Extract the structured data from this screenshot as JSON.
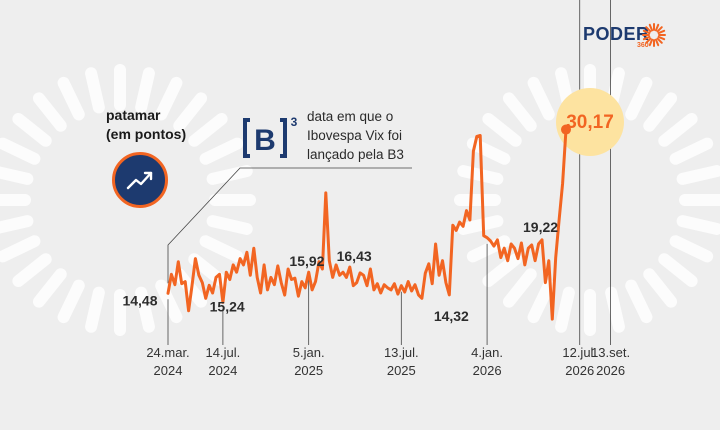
{
  "brand": {
    "name": "PODER",
    "sub": "360",
    "colors": {
      "navy": "#1d3a6f",
      "orange": "#f26522",
      "highlight": "#fde3a0",
      "background": "#eeeeee"
    }
  },
  "legend": {
    "title_line1": "patamar",
    "title_line2": "(em pontos)",
    "icon": "trend-up-icon"
  },
  "b3_note": {
    "logo_text": "B",
    "logo_superscript": "3",
    "line1": "data em que o",
    "line2": "Ibovespa Vix foi",
    "line3": "lançado pela B3"
  },
  "chart_data": {
    "type": "line",
    "title": "",
    "xlabel": "",
    "ylabel": "",
    "ylim": [
      10,
      33
    ],
    "grid": false,
    "x_ticks": [
      {
        "line1": "24.mar.",
        "line2": "2024",
        "week": 0
      },
      {
        "line1": "14.jul.",
        "line2": "2024",
        "week": 16
      },
      {
        "line1": "5.jan.",
        "line2": "2025",
        "week": 41
      },
      {
        "line1": "13.jul.",
        "line2": "2025",
        "week": 68
      },
      {
        "line1": "4.jan.",
        "line2": "2026",
        "week": 93
      },
      {
        "line1": "12.jul.",
        "line2": "2026",
        "week": 120
      },
      {
        "line1": "13.set.",
        "line2": "2026",
        "week": 129
      }
    ],
    "series": [
      {
        "values": [
          14.48,
          16.3,
          15.3,
          17.5,
          15.4,
          15.6,
          12.8,
          15.2,
          17.8,
          16.2,
          15.5,
          14.0,
          15.24,
          14.5,
          16.0,
          16.3,
          13.6,
          16.5,
          15.8,
          17.2,
          16.5,
          17.8,
          17.2,
          18.4,
          16.2,
          18.8,
          16.0,
          14.5,
          17.2,
          14.8,
          16.0,
          15.3,
          17.1,
          15.5,
          14.3,
          16.8,
          15.8,
          15.92,
          14.2,
          15.6,
          15.0,
          16.5,
          14.8,
          15.6,
          17.5,
          16.8,
          24.1,
          17.6,
          16.0,
          17.2,
          16.2,
          16.5,
          16.0,
          17.0,
          15.2,
          15.5,
          16.43,
          16.2,
          15.2,
          16.8,
          14.8,
          15.4,
          14.5,
          15.3,
          15.0,
          14.8,
          15.4,
          14.4,
          15.2,
          14.6,
          15.6,
          14.7,
          15.3,
          14.32,
          14.0,
          16.4,
          17.3,
          15.4,
          19.2,
          16.2,
          17.6,
          15.5,
          14.32,
          21.0,
          20.5,
          21.3,
          20.9,
          22.4,
          21.5,
          28.1,
          29.5,
          29.6,
          20.0,
          19.8,
          19.5,
          19.0,
          19.6,
          17.9,
          18.8,
          17.6,
          19.2,
          18.8,
          17.8,
          19.3,
          17.2,
          18.8,
          19.1,
          17.6,
          19.22,
          19.6,
          15.5,
          17.6,
          12.0,
          17.9,
          21.5,
          25.0,
          30.17
        ]
      }
    ],
    "annotations": [
      {
        "label": "14,48",
        "week": 0
      },
      {
        "label": "15,24",
        "week": 12
      },
      {
        "label": "15,92",
        "week": 37
      },
      {
        "label": "16,43",
        "week": 56
      },
      {
        "label": "14,32",
        "week": 82
      },
      {
        "label": "19,22",
        "week": 108
      },
      {
        "label": "30,17",
        "week": 116,
        "highlight": true
      }
    ],
    "b3_marker_week": 0
  }
}
